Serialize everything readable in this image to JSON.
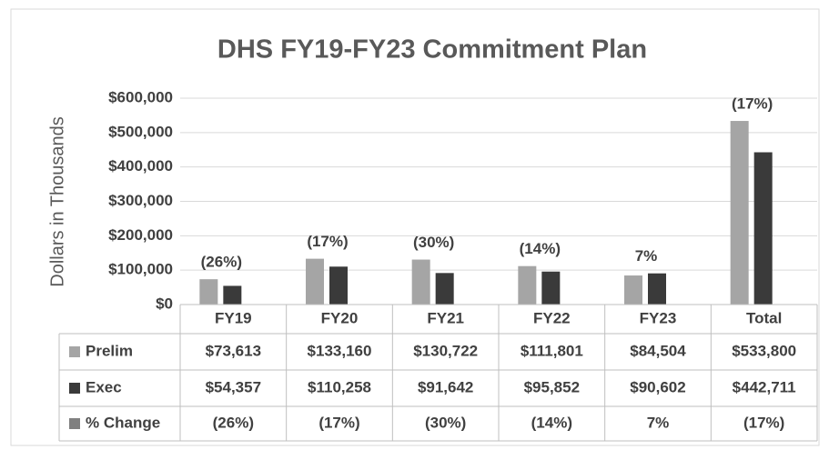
{
  "chart_data": {
    "type": "bar",
    "title": "DHS FY19-FY23 Commitment Plan",
    "y_label": "Dollars in Thousands",
    "categories": [
      "FY19",
      "FY20",
      "FY21",
      "FY22",
      "FY23",
      "Total"
    ],
    "series": [
      {
        "name": "Prelim",
        "color": "#a5a5a5",
        "values": [
          73613,
          133160,
          130722,
          111801,
          84504,
          533800
        ],
        "value_labels": [
          "$73,613",
          "$133,160",
          "$130,722",
          "$111,801",
          "$84,504",
          "$533,800"
        ]
      },
      {
        "name": "Exec",
        "color": "#3a3a3a",
        "values": [
          54357,
          110258,
          91642,
          95852,
          90602,
          442711
        ],
        "value_labels": [
          "$54,357",
          "$110,258",
          "$91,642",
          "$95,852",
          "$90,602",
          "$442,711"
        ]
      }
    ],
    "pct_change": {
      "name": "% Change",
      "color": "#808080",
      "values": [
        -26,
        -17,
        -30,
        -14,
        7,
        -17
      ],
      "value_labels": [
        "(26%)",
        "(17%)",
        "(30%)",
        "(14%)",
        "7%",
        "(17%)"
      ]
    },
    "ylim": [
      0,
      600000
    ],
    "yticks": [
      {
        "value": 0,
        "label": "$0"
      },
      {
        "value": 100000,
        "label": "$100,000"
      },
      {
        "value": 200000,
        "label": "$200,000"
      },
      {
        "value": 300000,
        "label": "$300,000"
      },
      {
        "value": 400000,
        "label": "$400,000"
      },
      {
        "value": 500000,
        "label": "$500,000"
      },
      {
        "value": 600000,
        "label": "$600,000"
      }
    ],
    "grid": true
  }
}
